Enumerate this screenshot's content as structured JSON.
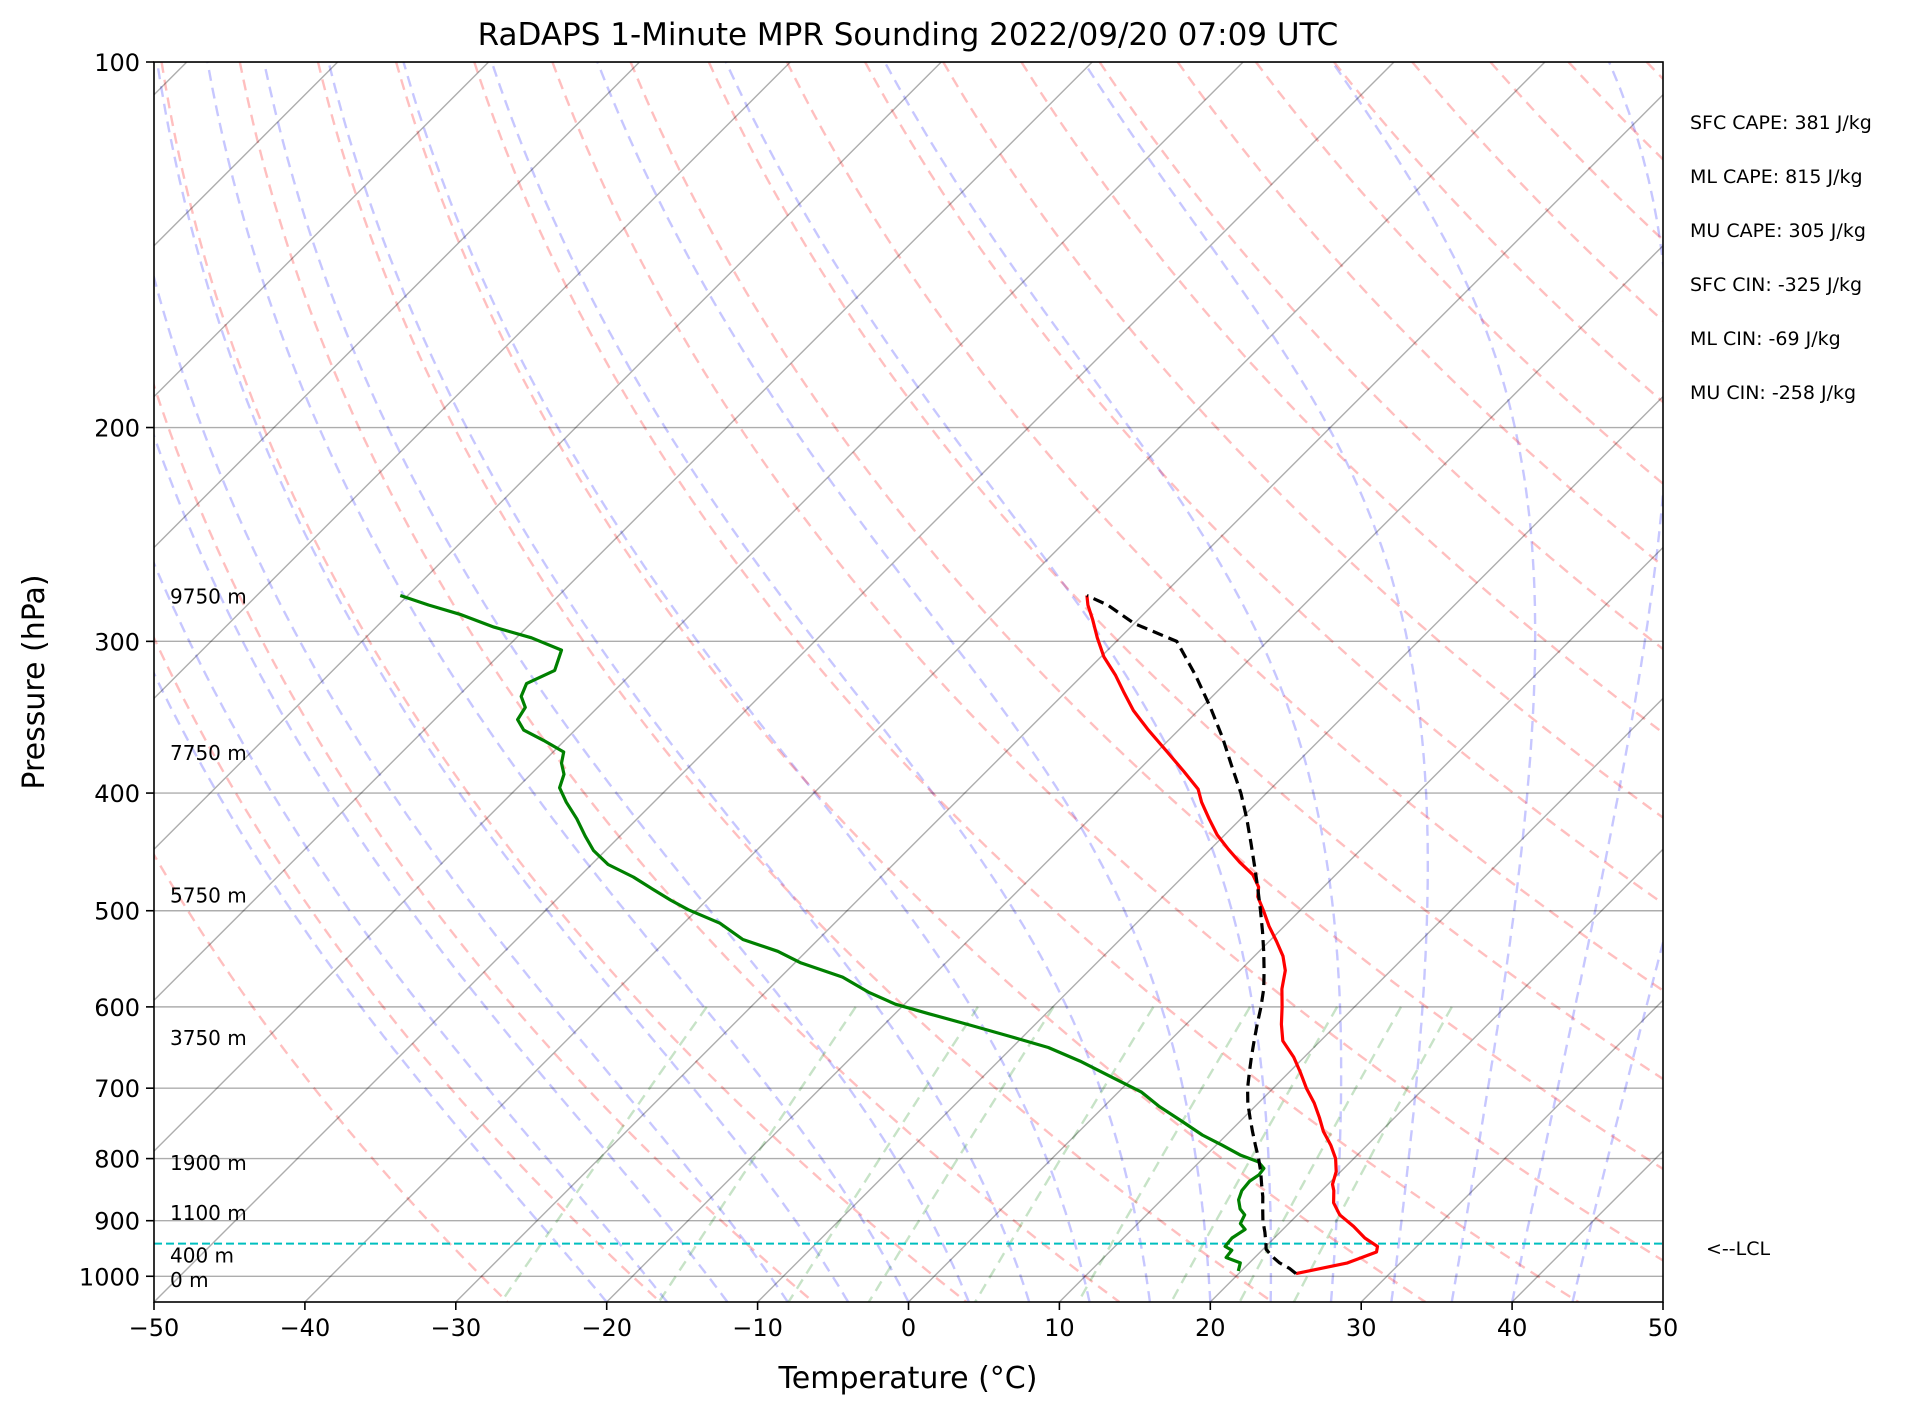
{
  "chart_data": {
    "type": "line",
    "title": "RaDAPS 1-Minute MPR Sounding 2022/09/20 07:09 UTC",
    "xlabel": "Temperature (°C)",
    "ylabel": "Pressure (hPa)",
    "xlim": [
      -50,
      50
    ],
    "ylim": [
      1050,
      100
    ],
    "y_scale": "log",
    "x_ticks": [
      -50,
      -40,
      -30,
      -20,
      -10,
      0,
      10,
      20,
      30,
      40,
      50
    ],
    "x_tick_labels": [
      "−50",
      "−40",
      "−30",
      "−20",
      "−10",
      "0",
      "10",
      "20",
      "30",
      "40",
      "50"
    ],
    "y_ticks": [
      100,
      200,
      300,
      400,
      500,
      600,
      700,
      800,
      900,
      1000
    ],
    "y_tick_labels": [
      "100",
      "200",
      "300",
      "400",
      "500",
      "600",
      "700",
      "800",
      "900",
      "1000"
    ],
    "skew": true,
    "grid": true,
    "series": [
      {
        "role": "temperature",
        "color": "#ff0000",
        "points": [
          [
            23.8,
            995
          ],
          [
            26.5,
            975
          ],
          [
            27.7,
            955
          ],
          [
            27.4,
            945
          ],
          [
            26.0,
            930
          ],
          [
            24.5,
            910
          ],
          [
            22.8,
            890
          ],
          [
            21.6,
            870
          ],
          [
            20.8,
            850
          ],
          [
            20.3,
            840
          ],
          [
            19.7,
            820
          ],
          [
            18.8,
            800
          ],
          [
            17.6,
            780
          ],
          [
            16.2,
            760
          ],
          [
            15.0,
            740
          ],
          [
            13.7,
            720
          ],
          [
            12.2,
            700
          ],
          [
            10.8,
            680
          ],
          [
            9.3,
            660
          ],
          [
            7.5,
            640
          ],
          [
            6.3,
            620
          ],
          [
            5.2,
            600
          ],
          [
            4.0,
            580
          ],
          [
            3.0,
            560
          ],
          [
            1.9,
            545
          ],
          [
            0.5,
            530
          ],
          [
            -1.0,
            515
          ],
          [
            -2.4,
            500
          ],
          [
            -3.7,
            487
          ],
          [
            -4.3,
            478
          ],
          [
            -5.5,
            467
          ],
          [
            -7.2,
            456
          ],
          [
            -8.8,
            445
          ],
          [
            -10.5,
            433
          ],
          [
            -12.1,
            420
          ],
          [
            -13.7,
            407
          ],
          [
            -14.8,
            397
          ],
          [
            -16.9,
            384
          ],
          [
            -19.3,
            370
          ],
          [
            -22.0,
            355
          ],
          [
            -24.3,
            342
          ],
          [
            -26.2,
            330
          ],
          [
            -27.8,
            320
          ],
          [
            -29.8,
            309
          ],
          [
            -31.5,
            298
          ],
          [
            -33.0,
            288
          ],
          [
            -34.3,
            280
          ],
          [
            -35.0,
            275
          ]
        ]
      },
      {
        "role": "dewpoint",
        "color": "#008000",
        "points": [
          [
            19.8,
            990
          ],
          [
            19.4,
            975
          ],
          [
            18.1,
            965
          ],
          [
            18.0,
            952
          ],
          [
            17.3,
            945
          ],
          [
            17.2,
            930
          ],
          [
            17.5,
            915
          ],
          [
            16.8,
            905
          ],
          [
            16.5,
            890
          ],
          [
            15.8,
            880
          ],
          [
            15.1,
            865
          ],
          [
            14.7,
            850
          ],
          [
            14.6,
            835
          ],
          [
            14.8,
            825
          ],
          [
            14.7,
            815
          ],
          [
            13.9,
            805
          ],
          [
            12.3,
            795
          ],
          [
            10.4,
            780
          ],
          [
            8.4,
            765
          ],
          [
            6.1,
            745
          ],
          [
            3.7,
            725
          ],
          [
            1.5,
            705
          ],
          [
            -1.5,
            685
          ],
          [
            -4.6,
            665
          ],
          [
            -7.6,
            648
          ],
          [
            -11.0,
            634
          ],
          [
            -14.3,
            621
          ],
          [
            -17.7,
            608
          ],
          [
            -20.6,
            597
          ],
          [
            -23.1,
            584
          ],
          [
            -25.9,
            567
          ],
          [
            -29.6,
            552
          ],
          [
            -31.9,
            540
          ],
          [
            -35.0,
            528
          ],
          [
            -37.6,
            512
          ],
          [
            -40.6,
            499
          ],
          [
            -42.4,
            490
          ],
          [
            -44.3,
            480
          ],
          [
            -46.4,
            469
          ],
          [
            -48.9,
            458
          ],
          [
            -50.8,
            446
          ],
          [
            -52.3,
            434
          ],
          [
            -54.0,
            420
          ],
          [
            -55.8,
            407
          ],
          [
            -57.2,
            396
          ],
          [
            -57.8,
            386
          ],
          [
            -58.7,
            378
          ],
          [
            -59.3,
            370
          ],
          [
            -61.4,
            362
          ],
          [
            -63.4,
            355
          ],
          [
            -64.5,
            348
          ],
          [
            -64.8,
            340
          ],
          [
            -65.8,
            333
          ],
          [
            -66.3,
            325
          ],
          [
            -65.3,
            317
          ],
          [
            -66.2,
            305
          ],
          [
            -69.0,
            298
          ],
          [
            -72.2,
            292
          ],
          [
            -75.3,
            285
          ],
          [
            -78.0,
            280
          ],
          [
            -80.5,
            275
          ]
        ]
      },
      {
        "role": "parcel",
        "color": "#000000",
        "dashed": true,
        "points": [
          [
            23.8,
            995
          ],
          [
            23.0,
            985
          ],
          [
            22.0,
            975
          ],
          [
            21.0,
            962
          ],
          [
            20.2,
            950
          ],
          [
            19.9,
            942
          ],
          [
            19.0,
            920
          ],
          [
            18.1,
            900
          ],
          [
            17.3,
            880
          ],
          [
            16.5,
            860
          ],
          [
            15.6,
            840
          ],
          [
            14.7,
            820
          ],
          [
            13.7,
            800
          ],
          [
            12.6,
            780
          ],
          [
            11.5,
            760
          ],
          [
            10.4,
            740
          ],
          [
            9.3,
            720
          ],
          [
            8.3,
            700
          ],
          [
            7.4,
            680
          ],
          [
            6.5,
            660
          ],
          [
            5.6,
            640
          ],
          [
            4.7,
            620
          ],
          [
            3.8,
            600
          ],
          [
            2.8,
            580
          ],
          [
            1.6,
            560
          ],
          [
            0.3,
            540
          ],
          [
            -1.1,
            520
          ],
          [
            -2.6,
            500
          ],
          [
            -4.2,
            480
          ],
          [
            -5.9,
            460
          ],
          [
            -7.7,
            440
          ],
          [
            -9.6,
            420
          ],
          [
            -11.7,
            400
          ],
          [
            -14.1,
            380
          ],
          [
            -16.6,
            360
          ],
          [
            -19.4,
            340
          ],
          [
            -22.5,
            320
          ],
          [
            -26.0,
            300
          ],
          [
            -30.0,
            290
          ],
          [
            -33.0,
            280
          ],
          [
            -35.0,
            275
          ]
        ]
      }
    ],
    "lcl_pressure": 940,
    "lcl_label": "<--LCL",
    "height_labels": [
      {
        "text": "9750 m",
        "p": 275
      },
      {
        "text": "7750 m",
        "p": 370
      },
      {
        "text": "5750 m",
        "p": 485
      },
      {
        "text": "3750 m",
        "p": 635
      },
      {
        "text": "1900 m",
        "p": 805
      },
      {
        "text": "1100 m",
        "p": 885
      },
      {
        "text": "400 m",
        "p": 960
      },
      {
        "text": "0 m",
        "p": 1005
      }
    ],
    "stats": [
      "SFC CAPE: 381 J/kg",
      "ML CAPE: 815 J/kg",
      "MU CAPE: 305 J/kg",
      "SFC CIN: -325 J/kg",
      "ML CIN: -69 J/kg",
      "MU CIN: -258 J/kg"
    ]
  }
}
